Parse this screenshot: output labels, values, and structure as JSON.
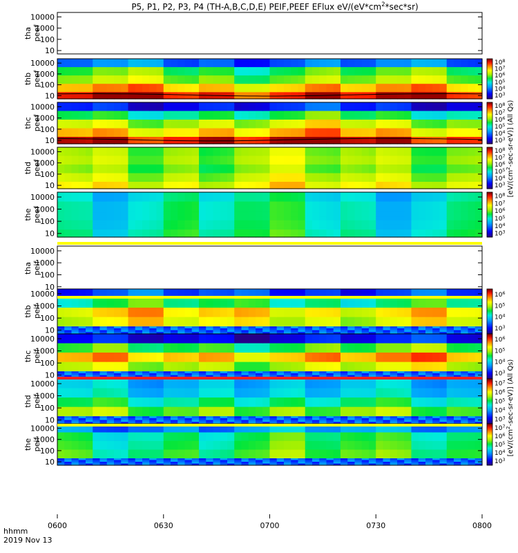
{
  "chart_data": {
    "type": "heatmap",
    "title": "P5, P1, P2, P3, P4 (TH-A,B,C,D,E) PEIF,PEEF EFlux eV/(eV*cm^2*sec*sr)",
    "x_tick_labels": [
      "0600",
      "0630",
      "0700",
      "0730",
      "0800"
    ],
    "x_ticks": [
      0,
      30,
      60,
      90,
      120
    ],
    "xlim": [
      0,
      120
    ],
    "x_axis_label": "hhmm",
    "date_label": "2019 Nov 13",
    "y_scale": "log",
    "y_tick_labels": [
      "10",
      "100",
      "1000",
      "10000"
    ],
    "y_ticks": [
      10,
      100,
      1000,
      10000
    ],
    "ylim": [
      5,
      25000
    ],
    "panels": [
      {
        "label_top": "tha",
        "label_bottom": "peef",
        "has_data": false
      },
      {
        "label_top": "thb",
        "label_bottom": "peef",
        "has_data": true,
        "colorbar": [
          "10^3",
          "10^4",
          "10^5",
          "10^6",
          "10^7",
          "10^8"
        ],
        "base": 0.45,
        "bands": [
          0.25,
          0.55,
          0.62,
          0.8,
          0.96
        ]
      },
      {
        "label_top": "thc",
        "label_bottom": "peef",
        "has_data": true,
        "colorbar": [
          "10^3",
          "10^4",
          "10^5",
          "10^6",
          "10^7",
          "10^8"
        ],
        "base": 0.45,
        "bands": [
          0.15,
          0.5,
          0.66,
          0.78,
          0.97
        ]
      },
      {
        "label_top": "thd",
        "label_bottom": "peef",
        "has_data": true,
        "colorbar": [
          "10^3",
          "10^4",
          "10^5",
          "10^6",
          "10^7",
          "10^8"
        ],
        "base": 0.6,
        "bands": [
          0.62,
          0.64,
          0.6,
          0.66,
          0.72
        ]
      },
      {
        "label_top": "the",
        "label_bottom": "peef",
        "has_data": true,
        "colorbar": [
          "10^3",
          "10^4",
          "10^5",
          "10^6",
          "10^7",
          "10^8"
        ],
        "base": 0.45,
        "bands": [
          0.42,
          0.45,
          0.45,
          0.46,
          0.48
        ]
      },
      {
        "label_top": "tha",
        "label_bottom": "peif",
        "has_data": false
      },
      {
        "label_top": "thb",
        "label_bottom": "peif",
        "has_data": true,
        "colorbar": [
          "10^3",
          "10^4",
          "10^5",
          "10^6"
        ],
        "base": 0.55,
        "bands": [
          0.2,
          0.5,
          0.75,
          0.7,
          0.5
        ]
      },
      {
        "label_top": "thc",
        "label_bottom": "peif",
        "has_data": true,
        "colorbar": [
          "10^3",
          "10^4",
          "10^5",
          "10^6"
        ],
        "base": 0.55,
        "bands": [
          0.12,
          0.55,
          0.8,
          0.65,
          0.3
        ]
      },
      {
        "label_top": "thd",
        "label_bottom": "peif",
        "has_data": true,
        "colorbar": [
          "10^3",
          "10^4",
          "10^5",
          "10^6",
          "10^7"
        ],
        "base": 0.45,
        "bands": [
          0.35,
          0.38,
          0.48,
          0.6,
          0.66
        ]
      },
      {
        "label_top": "the",
        "label_bottom": "peif",
        "has_data": true,
        "colorbar": [
          "10^3",
          "10^4",
          "10^5",
          "10^6",
          "10^7"
        ],
        "base": 0.52,
        "bands": [
          0.3,
          0.5,
          0.52,
          0.55,
          0.58
        ]
      }
    ],
    "colorbar_labels": {
      "peef": "[eV/(cm^2-sec-sr-eV)] (All Qs)",
      "peif": "[eV/(cm^2-sec-sr-eV)] (All Qs)"
    }
  }
}
